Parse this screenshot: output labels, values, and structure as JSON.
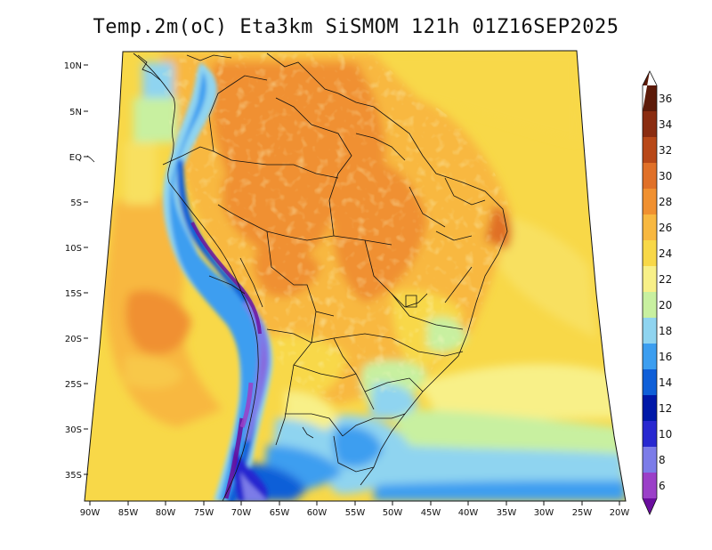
{
  "title": "Temp.2m(oC) Eta3km SiSMOM 121h 01Z16SEP2025",
  "latitude_labels": [
    "10N",
    "5N",
    "EQ",
    "5S",
    "10S",
    "15S",
    "20S",
    "25S",
    "30S",
    "35S"
  ],
  "longitude_labels": [
    "90W",
    "85W",
    "80W",
    "75W",
    "70W",
    "65W",
    "60W",
    "55W",
    "50W",
    "45W",
    "40W",
    "35W",
    "30W",
    "25W",
    "20W"
  ],
  "colorbar": {
    "unit": "oC",
    "levels": [
      6,
      8,
      10,
      12,
      14,
      16,
      18,
      20,
      22,
      24,
      26,
      28,
      30,
      32,
      34,
      36
    ],
    "colors": [
      "#6a0d9e",
      "#9b3fc8",
      "#7c7ce8",
      "#2828d0",
      "#0018a8",
      "#0f5fd8",
      "#3c9ef0",
      "#8fd4f0",
      "#c8f0a0",
      "#f8f088",
      "#f8d848",
      "#f8b840",
      "#f09030",
      "#e07028",
      "#b84818",
      "#8a2c10",
      "#5c1a08"
    ]
  }
}
